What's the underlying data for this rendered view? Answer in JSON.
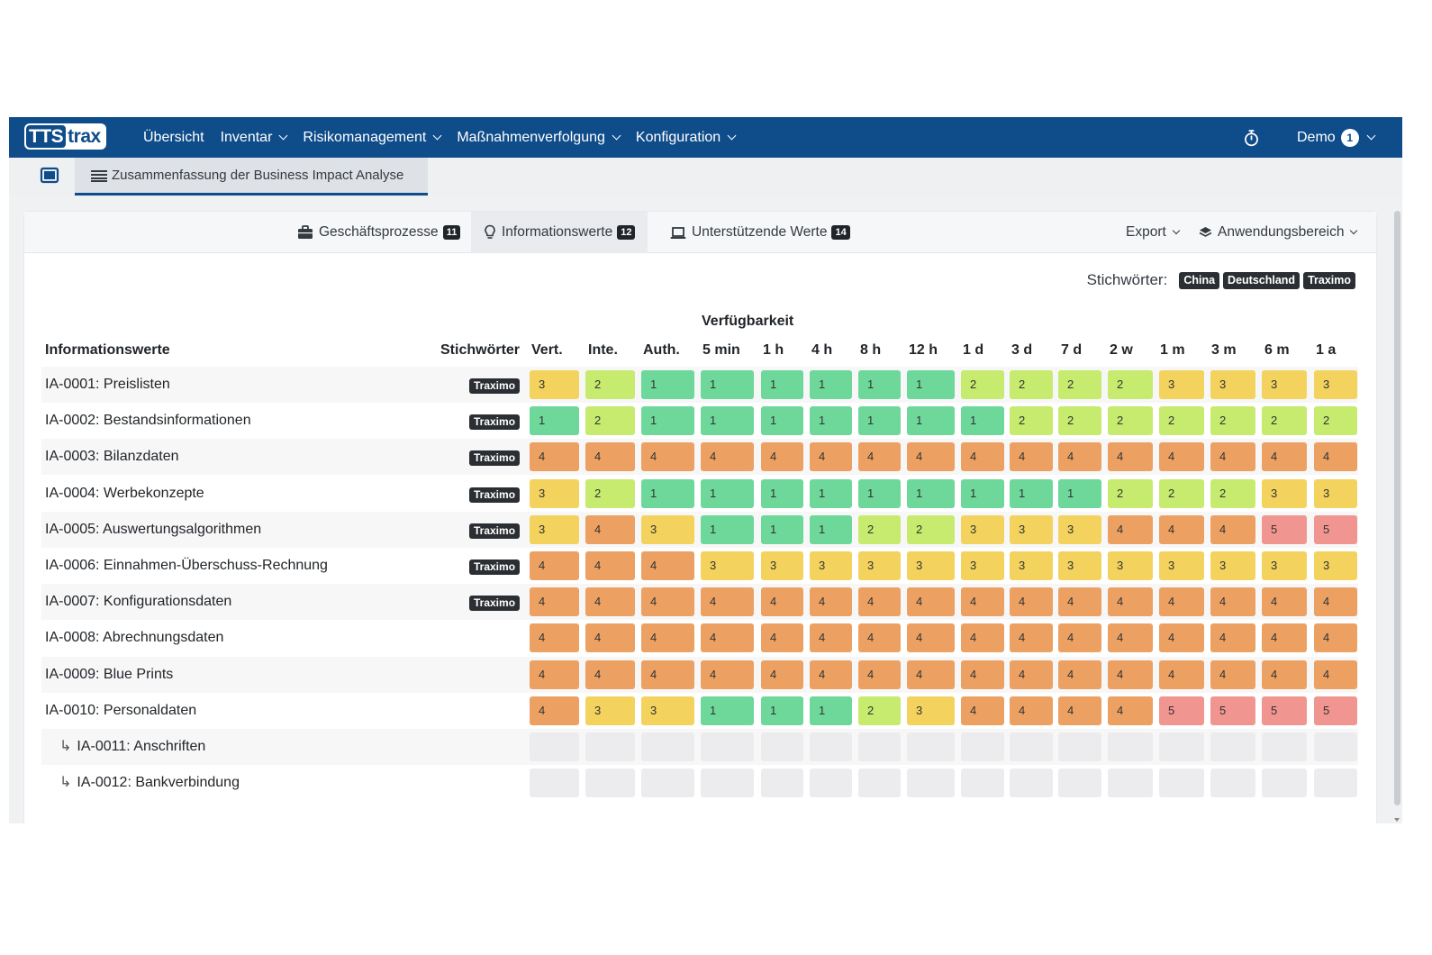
{
  "navbar": {
    "logo_part1": "TTS",
    "logo_part2": "trax",
    "items": [
      "Übersicht",
      "Inventar",
      "Risikomanagement",
      "Maßnahmenverfolgung",
      "Konfiguration"
    ],
    "user": "Demo",
    "user_count": "1"
  },
  "subbar": {
    "page_tab": "Zusammenfassung der Business Impact Analyse"
  },
  "card": {
    "tabs": [
      {
        "label": "Geschäftsprozesse",
        "badge": "11"
      },
      {
        "label": "Informationswerte",
        "badge": "12"
      },
      {
        "label": "Unterstützende Werte",
        "badge": "14"
      }
    ],
    "export_label": "Export",
    "scope_label": "Anwendungsbereich",
    "keywords_label": "Stichwörter:",
    "keywords": [
      "China",
      "Deutschland",
      "Traximo"
    ]
  },
  "table": {
    "group_header": "Verfügbarkeit",
    "name_header": "Informationswerte",
    "keyword_header": "Stichwörter",
    "columns": [
      "Vert.",
      "Inte.",
      "Auth.",
      "5 min",
      "1 h",
      "4 h",
      "8 h",
      "12 h",
      "1 d",
      "3 d",
      "7 d",
      "2 w",
      "1 m",
      "3 m",
      "6 m",
      "1 a"
    ],
    "rows": [
      {
        "name": "IA-0001: Preislisten",
        "keyword": "Traximo",
        "values": [
          3,
          2,
          1,
          1,
          1,
          1,
          1,
          1,
          2,
          2,
          2,
          2,
          3,
          3,
          3,
          3
        ]
      },
      {
        "name": "IA-0002: Bestandsinformationen",
        "keyword": "Traximo",
        "values": [
          1,
          2,
          1,
          1,
          1,
          1,
          1,
          1,
          1,
          2,
          2,
          2,
          2,
          2,
          2,
          2
        ]
      },
      {
        "name": "IA-0003: Bilanzdaten",
        "keyword": "Traximo",
        "values": [
          4,
          4,
          4,
          4,
          4,
          4,
          4,
          4,
          4,
          4,
          4,
          4,
          4,
          4,
          4,
          4
        ]
      },
      {
        "name": "IA-0004: Werbekonzepte",
        "keyword": "Traximo",
        "values": [
          3,
          2,
          1,
          1,
          1,
          1,
          1,
          1,
          1,
          1,
          1,
          2,
          2,
          2,
          3,
          3
        ]
      },
      {
        "name": "IA-0005: Auswertungsalgorithmen",
        "keyword": "Traximo",
        "values": [
          3,
          4,
          3,
          1,
          1,
          1,
          2,
          2,
          3,
          3,
          3,
          4,
          4,
          4,
          5,
          5
        ]
      },
      {
        "name": "IA-0006: Einnahmen-Überschuss-Rechnung",
        "keyword": "Traximo",
        "values": [
          4,
          4,
          4,
          3,
          3,
          3,
          3,
          3,
          3,
          3,
          3,
          3,
          3,
          3,
          3,
          3
        ]
      },
      {
        "name": "IA-0007: Konfigurationsdaten",
        "keyword": "Traximo",
        "values": [
          4,
          4,
          4,
          4,
          4,
          4,
          4,
          4,
          4,
          4,
          4,
          4,
          4,
          4,
          4,
          4
        ]
      },
      {
        "name": "IA-0008: Abrechnungsdaten",
        "keyword": "",
        "values": [
          4,
          4,
          4,
          4,
          4,
          4,
          4,
          4,
          4,
          4,
          4,
          4,
          4,
          4,
          4,
          4
        ]
      },
      {
        "name": "IA-0009: Blue Prints",
        "keyword": "",
        "values": [
          4,
          4,
          4,
          4,
          4,
          4,
          4,
          4,
          4,
          4,
          4,
          4,
          4,
          4,
          4,
          4
        ]
      },
      {
        "name": "IA-0010: Personaldaten",
        "keyword": "",
        "values": [
          4,
          3,
          3,
          1,
          1,
          1,
          2,
          3,
          4,
          4,
          4,
          4,
          5,
          5,
          5,
          5
        ]
      },
      {
        "name": "IA-0011: Anschriften",
        "keyword": "",
        "child": true,
        "values": [
          0,
          0,
          0,
          0,
          0,
          0,
          0,
          0,
          0,
          0,
          0,
          0,
          0,
          0,
          0,
          0
        ]
      },
      {
        "name": "IA-0012: Bankverbindung",
        "keyword": "",
        "child": true,
        "values": [
          0,
          0,
          0,
          0,
          0,
          0,
          0,
          0,
          0,
          0,
          0,
          0,
          0,
          0,
          0,
          0
        ]
      }
    ]
  },
  "colors": {
    "brand": "#0f4c8a",
    "level_1": "#6dd89a",
    "level_2": "#c6eb6e",
    "level_3": "#f3d35e",
    "level_4": "#eca163",
    "level_5": "#f19590",
    "empty": "#ececee"
  }
}
